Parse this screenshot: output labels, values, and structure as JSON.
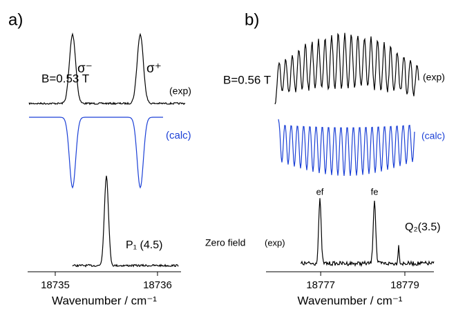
{
  "chart_data": [
    {
      "type": "line",
      "panel_label": "a)",
      "x_label": "Wavenumber / cm⁻¹",
      "xlim": [
        18734.73,
        18736.23
      ],
      "xticks": [
        18735,
        18736
      ],
      "annotations": [
        "B=0.53 T",
        "σ⁻",
        "σ⁺",
        "(exp)",
        "(calc)",
        "P₁ (4.5)"
      ]
    },
    {
      "type": "line",
      "panel_label": "b)",
      "x_label": "Wavenumber / cm⁻¹",
      "xlim": [
        18775.7,
        18779.69
      ],
      "xticks": [
        18777,
        18779
      ],
      "annotations": [
        "B=0.56 T",
        "(exp)",
        "(calc)",
        "ef",
        "fe",
        "Zero field",
        "(exp)",
        "Q₂(3.5)"
      ]
    }
  ]
}
